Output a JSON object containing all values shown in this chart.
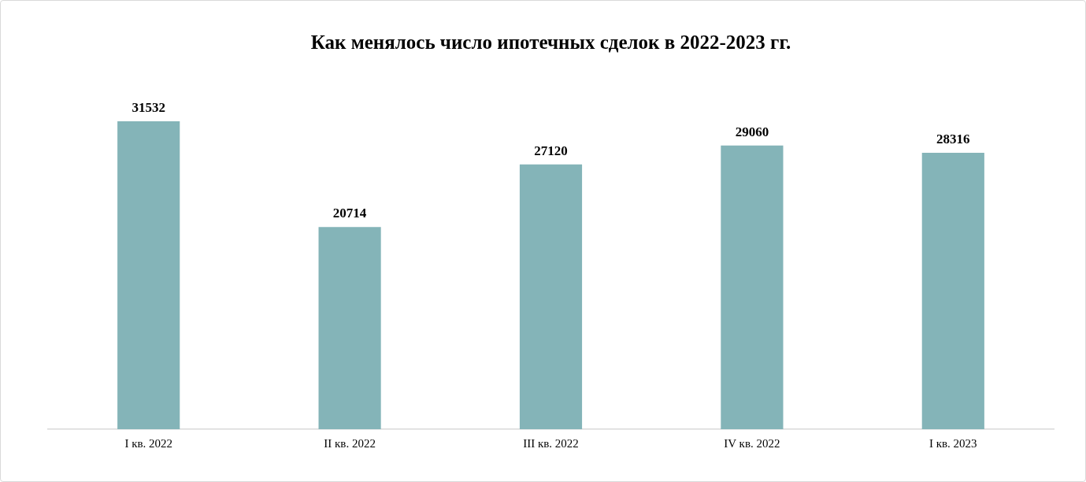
{
  "chart_data": {
    "type": "bar",
    "title": "Как менялось число ипотечных сделок в 2022-2023 гг.",
    "categories": [
      "I кв. 2022",
      "II кв. 2022",
      "III кв. 2022",
      "IV кв. 2022",
      "I кв. 2023"
    ],
    "values": [
      31532,
      20714,
      27120,
      29060,
      28316
    ],
    "color": "#84b4b8",
    "data_labels": true,
    "grid": false,
    "legend": false
  }
}
